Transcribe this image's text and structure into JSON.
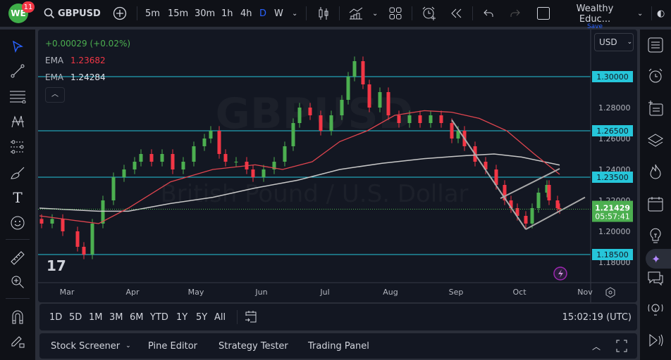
{
  "topbar": {
    "badge_count": "11",
    "symbol": "GBPUSD",
    "intervals": [
      "5m",
      "15m",
      "30m",
      "1h",
      "4h",
      "D",
      "W"
    ],
    "active_interval": "D",
    "layout_name": "Wealthy Educ...",
    "save_label": "Save",
    "accent": "#2962ff"
  },
  "legend": {
    "change": "+0.00029 (+0.02%)",
    "ema1_label": "EMA",
    "ema1_value": "1.23682",
    "ema2_label": "EMA",
    "ema2_value": "1.24284"
  },
  "watermark": {
    "symbol": "GBPUSD",
    "description": "British Pound / U.S. Dollar"
  },
  "currency": "USD",
  "price_axis": {
    "ticks": [
      "1.28000",
      "1.26000",
      "1.24000",
      "1.22000",
      "1.20000",
      "1.18000"
    ]
  },
  "levels": [
    {
      "label": "1.30000",
      "price": 1.3
    },
    {
      "label": "1.26500",
      "price": 1.265
    },
    {
      "label": "1.23500",
      "price": 1.235
    },
    {
      "label": "1.18500",
      "price": 1.185
    }
  ],
  "last_price": {
    "label": "1.21429",
    "value": 1.21429,
    "countdown": "05:57:41"
  },
  "time_axis": [
    "Mar",
    "Apr",
    "May",
    "Jun",
    "Jul",
    "Aug",
    "Sep",
    "Oct",
    "Nov"
  ],
  "colors": {
    "up": "#089981",
    "up_bright": "#4caf50",
    "down": "#f23645",
    "level": "#26c6da",
    "ema_fast": "#e0454f",
    "ema_slow": "#c8c8c8",
    "trend": "#a9a9a9"
  },
  "chart_data": {
    "type": "candlestick",
    "symbol": "GBPUSD",
    "interval": "D",
    "ylim": [
      1.175,
      1.315
    ],
    "closes": [
      [
        "02-17",
        1.205
      ],
      [
        "02-22",
        1.208
      ],
      [
        "02-27",
        1.2
      ],
      [
        "03-06",
        1.19
      ],
      [
        "03-09",
        1.185
      ],
      [
        "03-13",
        1.205
      ],
      [
        "03-18",
        1.22
      ],
      [
        "03-23",
        1.235
      ],
      [
        "03-28",
        1.24
      ],
      [
        "04-02",
        1.245
      ],
      [
        "04-05",
        1.25
      ],
      [
        "04-10",
        1.245
      ],
      [
        "04-15",
        1.25
      ],
      [
        "04-20",
        1.24
      ],
      [
        "04-25",
        1.245
      ],
      [
        "04-30",
        1.255
      ],
      [
        "05-05",
        1.26
      ],
      [
        "05-08",
        1.265
      ],
      [
        "05-12",
        1.25
      ],
      [
        "05-15",
        1.245
      ],
      [
        "05-20",
        1.245
      ],
      [
        "05-25",
        1.24
      ],
      [
        "05-28",
        1.235
      ],
      [
        "06-02",
        1.24
      ],
      [
        "06-07",
        1.245
      ],
      [
        "06-12",
        1.255
      ],
      [
        "06-16",
        1.27
      ],
      [
        "06-19",
        1.28
      ],
      [
        "06-24",
        1.275
      ],
      [
        "06-29",
        1.265
      ],
      [
        "07-04",
        1.275
      ],
      [
        "07-09",
        1.285
      ],
      [
        "07-12",
        1.3
      ],
      [
        "07-15",
        1.31
      ],
      [
        "07-19",
        1.295
      ],
      [
        "07-22",
        1.28
      ],
      [
        "07-27",
        1.29
      ],
      [
        "07-31",
        1.275
      ],
      [
        "08-05",
        1.27
      ],
      [
        "08-10",
        1.275
      ],
      [
        "08-15",
        1.27
      ],
      [
        "08-20",
        1.275
      ],
      [
        "08-25",
        1.27
      ],
      [
        "08-30",
        1.26
      ],
      [
        "09-02",
        1.265
      ],
      [
        "09-05",
        1.255
      ],
      [
        "09-10",
        1.245
      ],
      [
        "09-15",
        1.24
      ],
      [
        "09-20",
        1.23
      ],
      [
        "09-24",
        1.22
      ],
      [
        "09-27",
        1.215
      ],
      [
        "09-30",
        1.21
      ],
      [
        "10-04",
        1.205
      ],
      [
        "10-07",
        1.215
      ],
      [
        "10-10",
        1.225
      ],
      [
        "10-14",
        1.23
      ],
      [
        "10-15",
        1.22
      ],
      [
        "10-19",
        1.215
      ],
      [
        "10-20",
        1.21429
      ]
    ],
    "ema_fast": [
      [
        "02-16",
        1.21
      ],
      [
        "03-16",
        1.205
      ],
      [
        "03-30",
        1.215
      ],
      [
        "04-19",
        1.232
      ],
      [
        "05-09",
        1.24
      ],
      [
        "05-29",
        1.243
      ],
      [
        "06-11",
        1.24
      ],
      [
        "06-25",
        1.245
      ],
      [
        "07-08",
        1.258
      ],
      [
        "07-21",
        1.265
      ],
      [
        "08-03",
        1.275
      ],
      [
        "08-17",
        1.278
      ],
      [
        "08-30",
        1.277
      ],
      [
        "09-12",
        1.273
      ],
      [
        "09-25",
        1.265
      ],
      [
        "10-08",
        1.25
      ],
      [
        "10-20",
        1.23682
      ]
    ],
    "ema_slow": [
      [
        "02-16",
        1.215
      ],
      [
        "03-16",
        1.213
      ],
      [
        "03-30",
        1.213
      ],
      [
        "04-19",
        1.218
      ],
      [
        "05-09",
        1.222
      ],
      [
        "05-29",
        1.228
      ],
      [
        "06-18",
        1.233
      ],
      [
        "07-08",
        1.24
      ],
      [
        "07-28",
        1.244
      ],
      [
        "08-17",
        1.247
      ],
      [
        "09-06",
        1.249
      ],
      [
        "09-19",
        1.25
      ],
      [
        "10-02",
        1.248
      ],
      [
        "10-20",
        1.24284
      ]
    ],
    "trendlines": [
      [
        [
          "08-30",
          1.272
        ],
        [
          "10-04",
          1.2013
        ]
      ],
      [
        [
          "10-04",
          1.2013
        ],
        [
          "11-01",
          1.222
        ]
      ],
      [
        [
          "09-22",
          1.2213
        ],
        [
          "10-20",
          1.2405
        ]
      ]
    ]
  },
  "range_bar": {
    "ranges": [
      "1D",
      "5D",
      "1M",
      "3M",
      "6M",
      "YTD",
      "1Y",
      "5Y",
      "All"
    ],
    "clock": "15:02:19 (UTC)"
  },
  "bottom_tabs": [
    "Stock Screener",
    "Pine Editor",
    "Strategy Tester",
    "Trading Panel"
  ]
}
